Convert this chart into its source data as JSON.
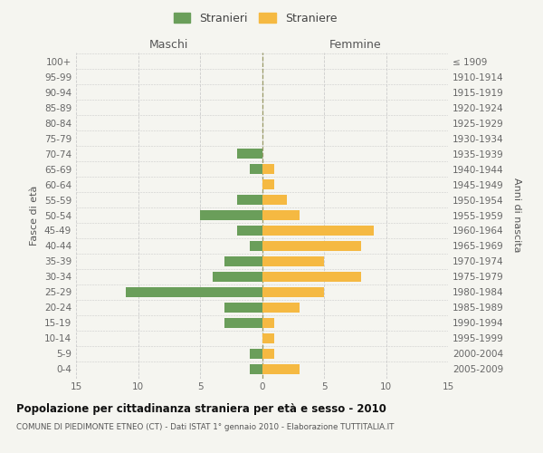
{
  "age_groups": [
    "0-4",
    "5-9",
    "10-14",
    "15-19",
    "20-24",
    "25-29",
    "30-34",
    "35-39",
    "40-44",
    "45-49",
    "50-54",
    "55-59",
    "60-64",
    "65-69",
    "70-74",
    "75-79",
    "80-84",
    "85-89",
    "90-94",
    "95-99",
    "100+"
  ],
  "birth_years": [
    "2005-2009",
    "2000-2004",
    "1995-1999",
    "1990-1994",
    "1985-1989",
    "1980-1984",
    "1975-1979",
    "1970-1974",
    "1965-1969",
    "1960-1964",
    "1955-1959",
    "1950-1954",
    "1945-1949",
    "1940-1944",
    "1935-1939",
    "1930-1934",
    "1925-1929",
    "1920-1924",
    "1915-1919",
    "1910-1914",
    "≤ 1909"
  ],
  "maschi_stranieri": [
    1,
    1,
    0,
    3,
    3,
    11,
    4,
    3,
    1,
    2,
    5,
    2,
    0,
    1,
    2,
    0,
    0,
    0,
    0,
    0,
    0
  ],
  "femmine_straniere": [
    3,
    1,
    1,
    1,
    3,
    5,
    8,
    5,
    8,
    9,
    3,
    2,
    1,
    1,
    0,
    0,
    0,
    0,
    0,
    0,
    0
  ],
  "color_maschi": "#6a9e5a",
  "color_femmine": "#f5b942",
  "title": "Popolazione per cittadinanza straniera per età e sesso - 2010",
  "subtitle": "COMUNE DI PIEDIMONTE ETNEO (CT) - Dati ISTAT 1° gennaio 2010 - Elaborazione TUTTITALIA.IT",
  "xlabel_left": "Maschi",
  "xlabel_right": "Femmine",
  "ylabel_left": "Fasce di età",
  "ylabel_right": "Anni di nascita",
  "legend_maschi": "Stranieri",
  "legend_femmine": "Straniere",
  "xlim": 15,
  "background_color": "#f5f5f0",
  "grid_color": "#cccccc"
}
